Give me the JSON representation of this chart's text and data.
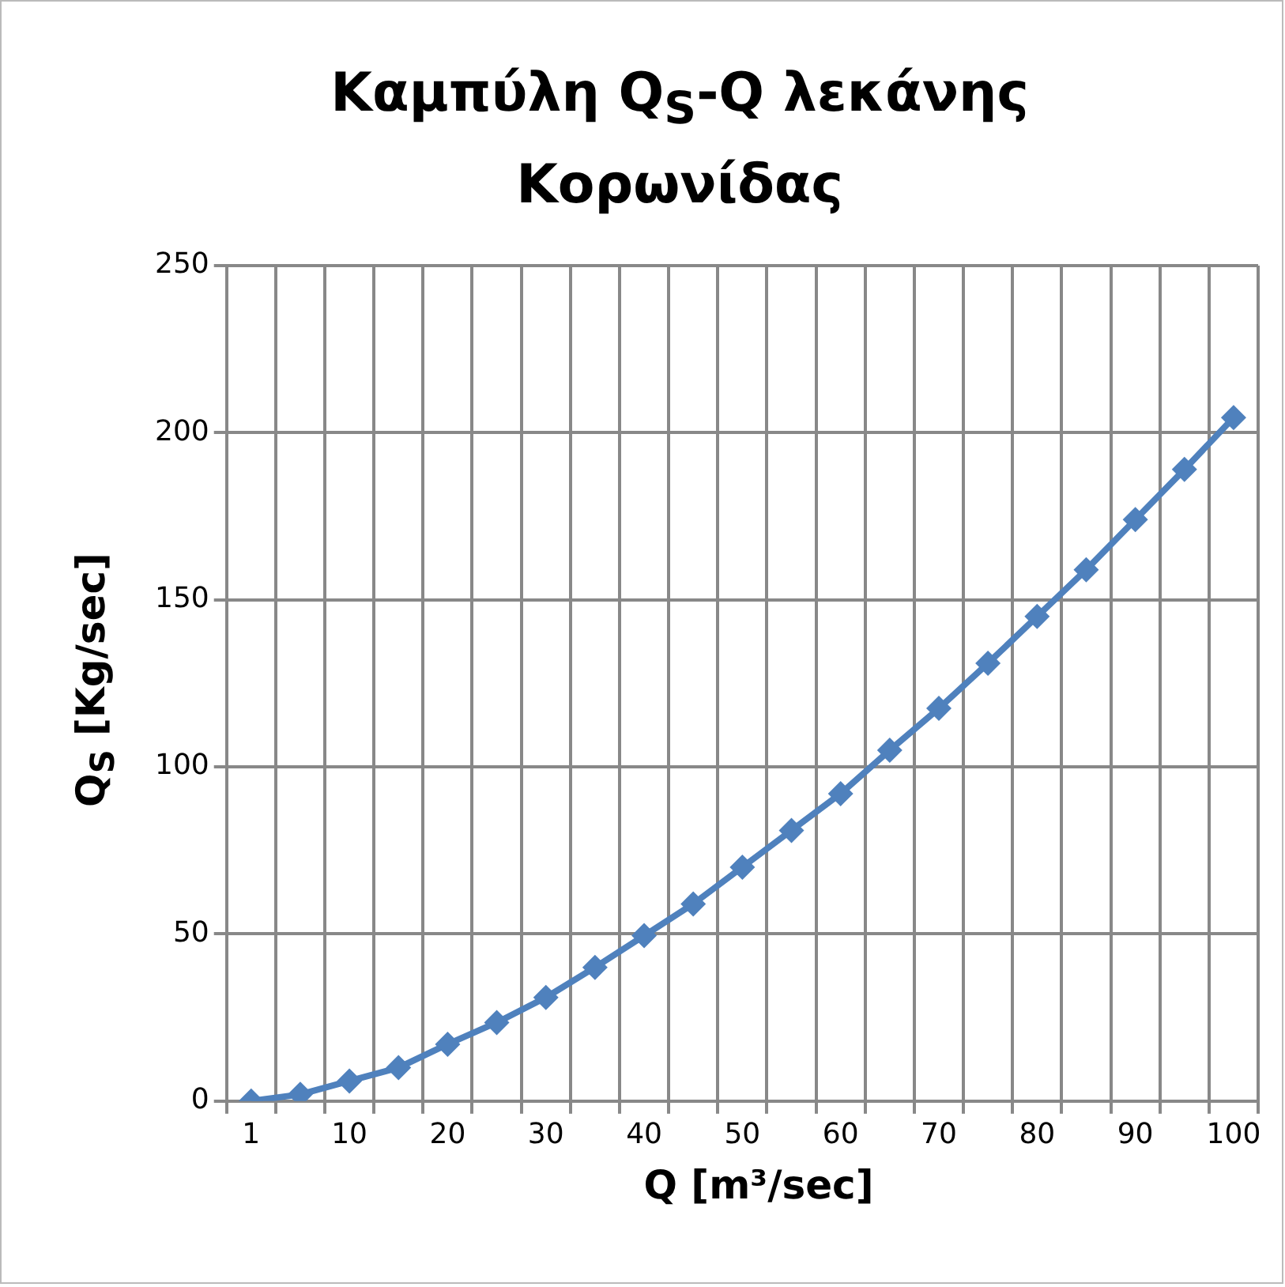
{
  "chart_data": {
    "type": "line",
    "title": "Καμπύλη Q$_{S}$-Q λεκάνης Κορωνίδας",
    "xlabel": "Q [m³/sec]",
    "ylabel": "Q$_{S}$ [Kg/sec]",
    "categories": [
      "1",
      null,
      "10",
      null,
      "20",
      null,
      "30",
      null,
      "40",
      null,
      "50",
      null,
      "60",
      null,
      "70",
      null,
      "80",
      null,
      "90",
      null,
      "100"
    ],
    "series": [
      {
        "color": "#4f81bd",
        "values": [
          0,
          2,
          6,
          10,
          17,
          23.5,
          31,
          40,
          49.5,
          59,
          70,
          81,
          92,
          105,
          117.5,
          131,
          145,
          159,
          174,
          189,
          204.5
        ]
      }
    ],
    "ylim": [
      0,
      250
    ],
    "yticks": [
      0,
      50,
      100,
      150,
      200,
      250
    ],
    "grid": true,
    "legend": false,
    "marker": "diamond",
    "line_style": "solid"
  }
}
